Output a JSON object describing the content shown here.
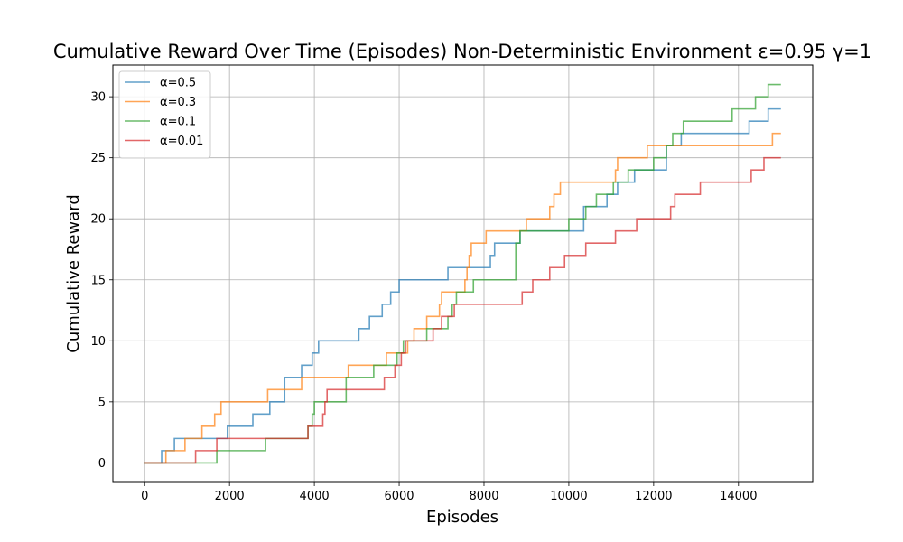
{
  "chart_data": {
    "type": "line",
    "title": "Cumulative Reward Over Time (Episodes) Non-Deterministic Environment ε=0.95 γ=1",
    "xlabel": "Episodes",
    "ylabel": "Cumulative Reward",
    "xlim": [
      -750,
      15750
    ],
    "ylim": [
      -1.6,
      32.6
    ],
    "xticks": [
      0,
      2000,
      4000,
      6000,
      8000,
      10000,
      12000,
      14000
    ],
    "yticks": [
      0,
      5,
      10,
      15,
      20,
      25,
      30
    ],
    "grid": true,
    "legend_position": "top-left",
    "step": "post",
    "series": [
      {
        "name": "α=0.5",
        "color": "#1f77b4",
        "points": [
          [
            0,
            0
          ],
          [
            400,
            1
          ],
          [
            700,
            2
          ],
          [
            1950,
            3
          ],
          [
            2550,
            4
          ],
          [
            2950,
            5
          ],
          [
            3300,
            7
          ],
          [
            3700,
            8
          ],
          [
            3950,
            9
          ],
          [
            4100,
            10
          ],
          [
            5050,
            11
          ],
          [
            5300,
            12
          ],
          [
            5600,
            13
          ],
          [
            5800,
            14
          ],
          [
            6000,
            15
          ],
          [
            7150,
            16
          ],
          [
            8150,
            17
          ],
          [
            8250,
            18
          ],
          [
            8850,
            19
          ],
          [
            10350,
            21
          ],
          [
            10900,
            22
          ],
          [
            11150,
            23
          ],
          [
            11550,
            24
          ],
          [
            12300,
            26
          ],
          [
            12650,
            27
          ],
          [
            14250,
            28
          ],
          [
            14700,
            29
          ],
          [
            15000,
            29
          ]
        ]
      },
      {
        "name": "α=0.3",
        "color": "#ff7f0e",
        "points": [
          [
            0,
            0
          ],
          [
            500,
            1
          ],
          [
            950,
            2
          ],
          [
            1350,
            3
          ],
          [
            1650,
            4
          ],
          [
            1800,
            5
          ],
          [
            2900,
            6
          ],
          [
            3700,
            7
          ],
          [
            4800,
            8
          ],
          [
            5700,
            9
          ],
          [
            6200,
            10
          ],
          [
            6350,
            11
          ],
          [
            6650,
            12
          ],
          [
            6950,
            13
          ],
          [
            7000,
            14
          ],
          [
            7550,
            15
          ],
          [
            7600,
            16
          ],
          [
            7650,
            17
          ],
          [
            7700,
            18
          ],
          [
            8050,
            19
          ],
          [
            9000,
            20
          ],
          [
            9550,
            21
          ],
          [
            9650,
            22
          ],
          [
            9800,
            23
          ],
          [
            11100,
            24
          ],
          [
            11150,
            25
          ],
          [
            11850,
            26
          ],
          [
            14800,
            27
          ],
          [
            15000,
            27
          ]
        ]
      },
      {
        "name": "α=0.1",
        "color": "#2ca02c",
        "points": [
          [
            0,
            0
          ],
          [
            1700,
            1
          ],
          [
            2850,
            2
          ],
          [
            3850,
            3
          ],
          [
            3950,
            4
          ],
          [
            4000,
            5
          ],
          [
            4750,
            7
          ],
          [
            5400,
            8
          ],
          [
            5950,
            9
          ],
          [
            6100,
            10
          ],
          [
            6650,
            11
          ],
          [
            7150,
            12
          ],
          [
            7250,
            13
          ],
          [
            7350,
            14
          ],
          [
            7750,
            15
          ],
          [
            8750,
            18
          ],
          [
            8850,
            19
          ],
          [
            10000,
            20
          ],
          [
            10400,
            21
          ],
          [
            10650,
            22
          ],
          [
            11050,
            23
          ],
          [
            11400,
            24
          ],
          [
            11600,
            24
          ],
          [
            12000,
            25
          ],
          [
            12300,
            26
          ],
          [
            12450,
            27
          ],
          [
            12700,
            28
          ],
          [
            13850,
            29
          ],
          [
            14400,
            30
          ],
          [
            14700,
            31
          ],
          [
            15000,
            31
          ]
        ]
      },
      {
        "name": "α=0.01",
        "color": "#d62728",
        "points": [
          [
            0,
            0
          ],
          [
            1200,
            1
          ],
          [
            1700,
            2
          ],
          [
            3850,
            3
          ],
          [
            4200,
            4
          ],
          [
            4250,
            5
          ],
          [
            4300,
            6
          ],
          [
            5650,
            7
          ],
          [
            5900,
            8
          ],
          [
            6050,
            9
          ],
          [
            6150,
            10
          ],
          [
            6800,
            11
          ],
          [
            7000,
            12
          ],
          [
            7300,
            13
          ],
          [
            8900,
            14
          ],
          [
            9150,
            15
          ],
          [
            9550,
            16
          ],
          [
            9900,
            17
          ],
          [
            10400,
            18
          ],
          [
            11100,
            19
          ],
          [
            11600,
            20
          ],
          [
            12400,
            21
          ],
          [
            12500,
            22
          ],
          [
            13100,
            23
          ],
          [
            14300,
            24
          ],
          [
            14600,
            25
          ],
          [
            15000,
            25
          ]
        ]
      }
    ]
  }
}
